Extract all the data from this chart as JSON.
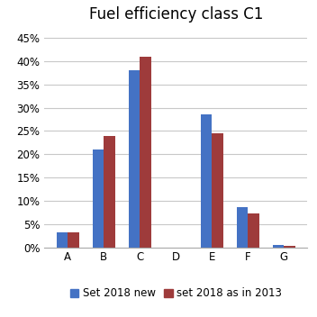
{
  "title": "Fuel efficiency class C1",
  "categories": [
    "A",
    "B",
    "C",
    "D",
    "E",
    "F",
    "G"
  ],
  "series1_label": "Set 2018 new",
  "series2_label": "set 2018 as in 2013",
  "series1_values": [
    0.033,
    0.21,
    0.38,
    0.0,
    0.285,
    0.086,
    0.005
  ],
  "series2_values": [
    0.033,
    0.24,
    0.41,
    0.0,
    0.245,
    0.072,
    0.003
  ],
  "series1_color": "#4472C4",
  "series2_color": "#9E3B3B",
  "ylim": [
    0,
    0.47
  ],
  "yticks": [
    0.0,
    0.05,
    0.1,
    0.15,
    0.2,
    0.25,
    0.3,
    0.35,
    0.4,
    0.45
  ],
  "yticklabels": [
    "0%",
    "5%",
    "10%",
    "15%",
    "20%",
    "25%",
    "30%",
    "35%",
    "40%",
    "45%"
  ],
  "bar_width": 0.32,
  "background_color": "#ffffff",
  "grid_color": "#c8c8c8",
  "title_fontsize": 12,
  "axis_fontsize": 8.5,
  "legend_fontsize": 8.5
}
